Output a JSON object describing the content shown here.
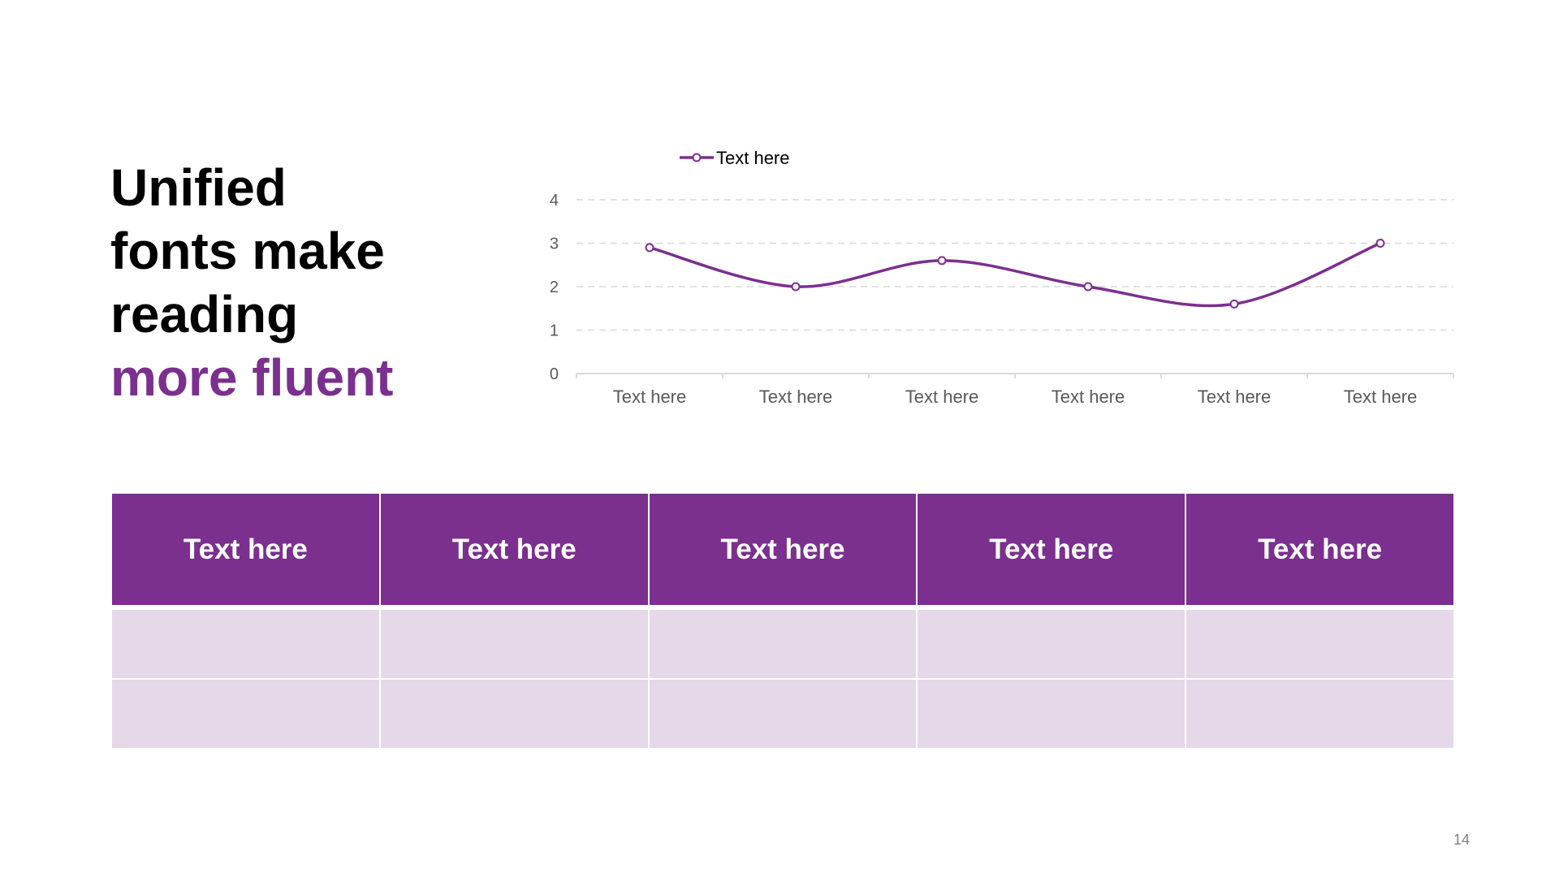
{
  "slide": {
    "title_lines": [
      "Unified",
      "fonts make",
      "reading"
    ],
    "title_accent": "more fluent",
    "page_number": "14"
  },
  "colors": {
    "accent": "#7b2f8e",
    "table_body": "#e5d8e9",
    "gridline": "#d9d9d9",
    "axis_text": "#595959"
  },
  "chart_data": {
    "type": "line",
    "smooth": true,
    "marker": "circle",
    "categories": [
      "Text here",
      "Text here",
      "Text here",
      "Text here",
      "Text here",
      "Text here"
    ],
    "series": [
      {
        "name": "Text here",
        "values": [
          2.9,
          2.0,
          2.6,
          2.0,
          1.6,
          3.0
        ]
      }
    ],
    "ylim": [
      0,
      4
    ],
    "yticks": [
      0,
      1,
      2,
      3,
      4
    ],
    "grid": true,
    "legend": "top-left"
  },
  "table": {
    "headers": [
      "Text here",
      "Text here",
      "Text here",
      "Text here",
      "Text here"
    ],
    "rows": [
      [
        "",
        "",
        "",
        "",
        ""
      ],
      [
        "",
        "",
        "",
        "",
        ""
      ]
    ]
  }
}
